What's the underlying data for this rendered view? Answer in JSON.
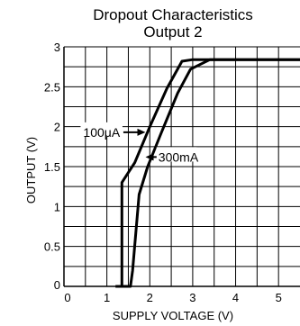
{
  "chart_data": {
    "type": "line",
    "title": "Dropout Characteristics",
    "subtitle": "Output 2",
    "xlabel": "SUPPLY VOLTAGE (V)",
    "ylabel": "OUTPUT (V)",
    "xlim": [
      0,
      5.5
    ],
    "ylim": [
      0,
      3
    ],
    "grid": true,
    "x_ticks": [
      0,
      1,
      2,
      3,
      4,
      5
    ],
    "y_ticks": [
      0,
      0.5,
      1,
      1.5,
      2,
      2.5,
      3
    ],
    "x_tick_labels": [
      "0",
      "1",
      "2",
      "3",
      "4",
      "5"
    ],
    "y_tick_labels": [
      "0",
      "0.5",
      "1",
      "1.5",
      "2",
      "2.5",
      "3"
    ],
    "series": [
      {
        "name": "100μA",
        "points": [
          [
            1.2,
            0
          ],
          [
            1.35,
            0
          ],
          [
            1.35,
            1.3
          ],
          [
            1.65,
            1.55
          ],
          [
            2.0,
            2.0
          ],
          [
            2.4,
            2.48
          ],
          [
            2.75,
            2.82
          ],
          [
            3.0,
            2.84
          ],
          [
            5.5,
            2.84
          ]
        ]
      },
      {
        "name": "300mA",
        "points": [
          [
            1.25,
            0
          ],
          [
            1.55,
            0
          ],
          [
            1.6,
            0.2
          ],
          [
            1.75,
            1.15
          ],
          [
            1.95,
            1.5
          ],
          [
            2.25,
            1.9
          ],
          [
            2.65,
            2.42
          ],
          [
            2.95,
            2.72
          ],
          [
            3.4,
            2.84
          ],
          [
            5.5,
            2.84
          ]
        ]
      }
    ],
    "annotations": [
      {
        "series": 0,
        "label": "100μA",
        "text_at": [
          0.45,
          1.93
        ],
        "arrow_to": [
          1.9,
          1.93
        ]
      },
      {
        "series": 1,
        "label": "300mA",
        "text_at": [
          2.2,
          1.62
        ],
        "arrow_to": [
          1.9,
          1.62
        ]
      }
    ]
  }
}
